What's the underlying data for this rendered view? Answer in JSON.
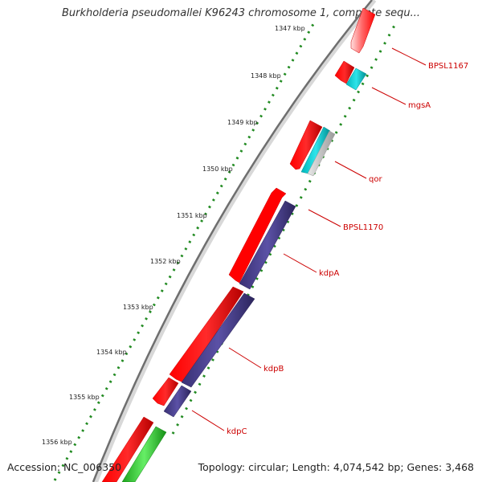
{
  "title": "Burkholderia pseudomallei K96243 chromosome 1, complete sequ...",
  "footer": {
    "accession": "Accession: NC_006350",
    "summary": "Topology: circular; Length: 4,074,542 bp; Genes: 3,468"
  },
  "colors": {
    "forward_cds": "#ff0000",
    "reverse_cds": "#483d8b",
    "rrna": "#00ced1",
    "misc": "#c0c0c0",
    "green_feature": "#33cc33",
    "label": "#cc0000",
    "ruler_dots": "#228b22",
    "backbone": "#777777"
  },
  "ruler_ticks": [
    {
      "kbp": 1347,
      "label": "1347 kbp"
    },
    {
      "kbp": 1348,
      "label": "1348 kbp"
    },
    {
      "kbp": 1349,
      "label": "1349 kbp"
    },
    {
      "kbp": 1350,
      "label": "1350 kbp"
    },
    {
      "kbp": 1351,
      "label": "1351 kbp"
    },
    {
      "kbp": 1352,
      "label": "1352 kbp"
    },
    {
      "kbp": 1353,
      "label": "1353 kbp"
    },
    {
      "kbp": 1354,
      "label": "1354 kbp"
    },
    {
      "kbp": 1355,
      "label": "1355 kbp"
    },
    {
      "kbp": 1356,
      "label": "1356 kbp"
    }
  ],
  "genes": [
    {
      "name": "BPSL1167",
      "track": "forward"
    },
    {
      "name": "mgsA",
      "track": "forward"
    },
    {
      "name": "qor",
      "track": "forward"
    },
    {
      "name": "BPSL1170",
      "track": "forward"
    },
    {
      "name": "kdpA",
      "track": "reverse"
    },
    {
      "name": "kdpB",
      "track": "reverse"
    },
    {
      "name": "kdpC",
      "track": "reverse"
    }
  ]
}
